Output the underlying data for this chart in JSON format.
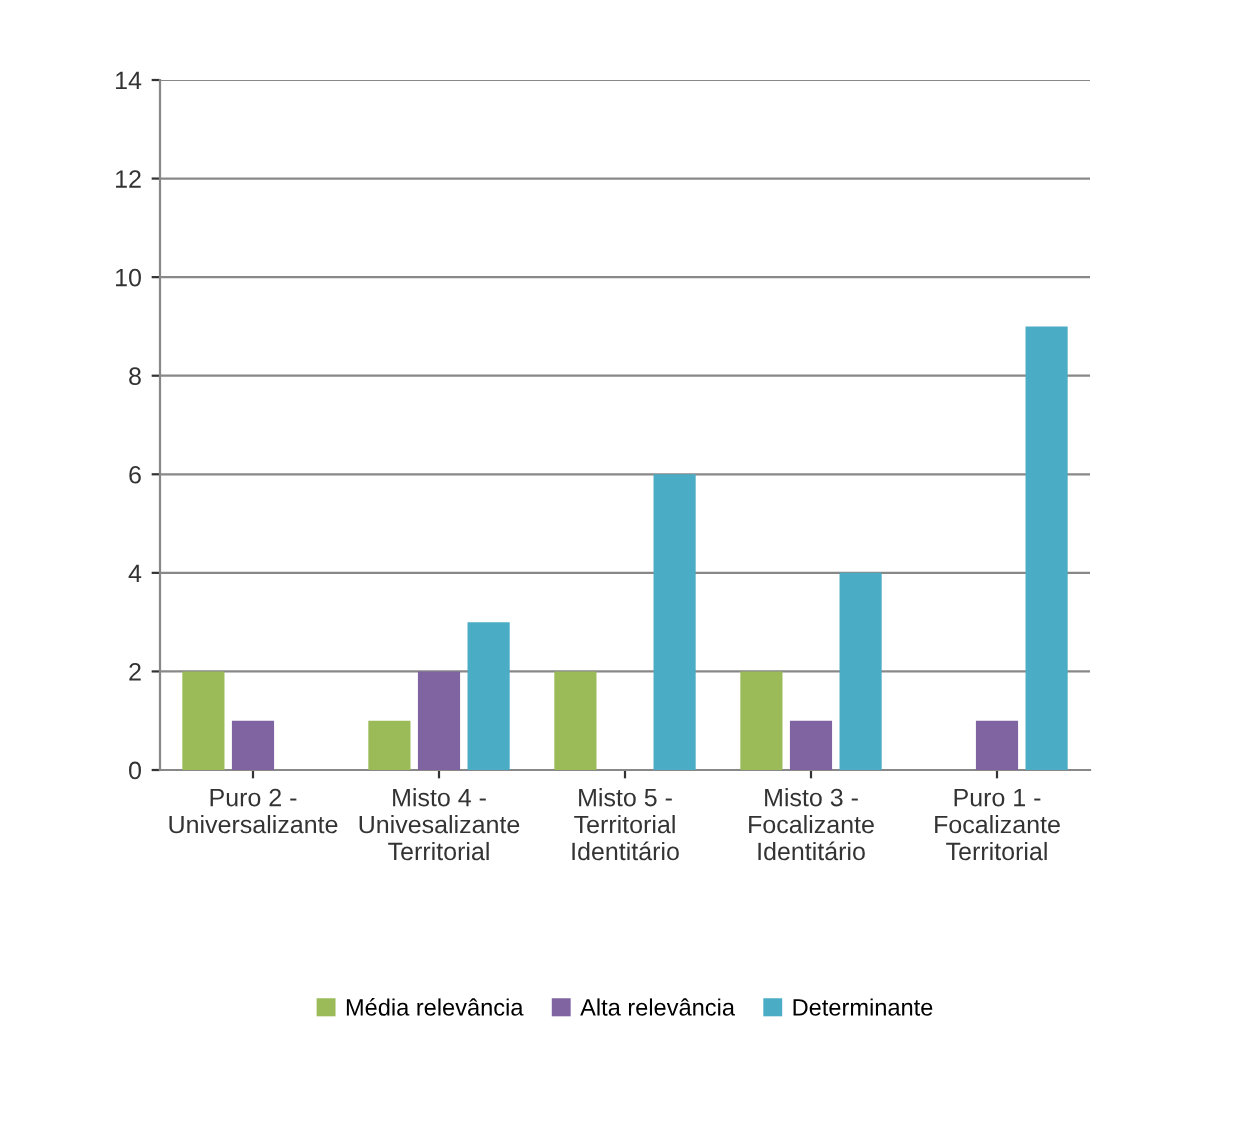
{
  "chart_data": {
    "type": "bar",
    "categories": [
      "Puro 2 -\nUniversalizante",
      "Misto 4 -\nUnivesalizante\nTerritorial",
      "Misto 5 -\nTerritorial\nIdentitário",
      "Misto 3 -\nFocalizante\nIdentitário",
      "Puro 1 -\nFocalizante\nTerritorial"
    ],
    "series": [
      {
        "name": "Média relevância",
        "color": "#9bbb59",
        "values": [
          2,
          1,
          2,
          2,
          0
        ]
      },
      {
        "name": "Alta relevância",
        "color": "#8064a2",
        "values": [
          1,
          2,
          0,
          1,
          1
        ]
      },
      {
        "name": "Determinante",
        "color": "#4bacc6",
        "values": [
          0,
          3,
          6,
          4,
          9
        ]
      }
    ],
    "ylim": [
      0,
      14
    ],
    "yticks": [
      0,
      2,
      4,
      6,
      8,
      10,
      12,
      14
    ],
    "grid": "y",
    "legend": "bottom"
  }
}
